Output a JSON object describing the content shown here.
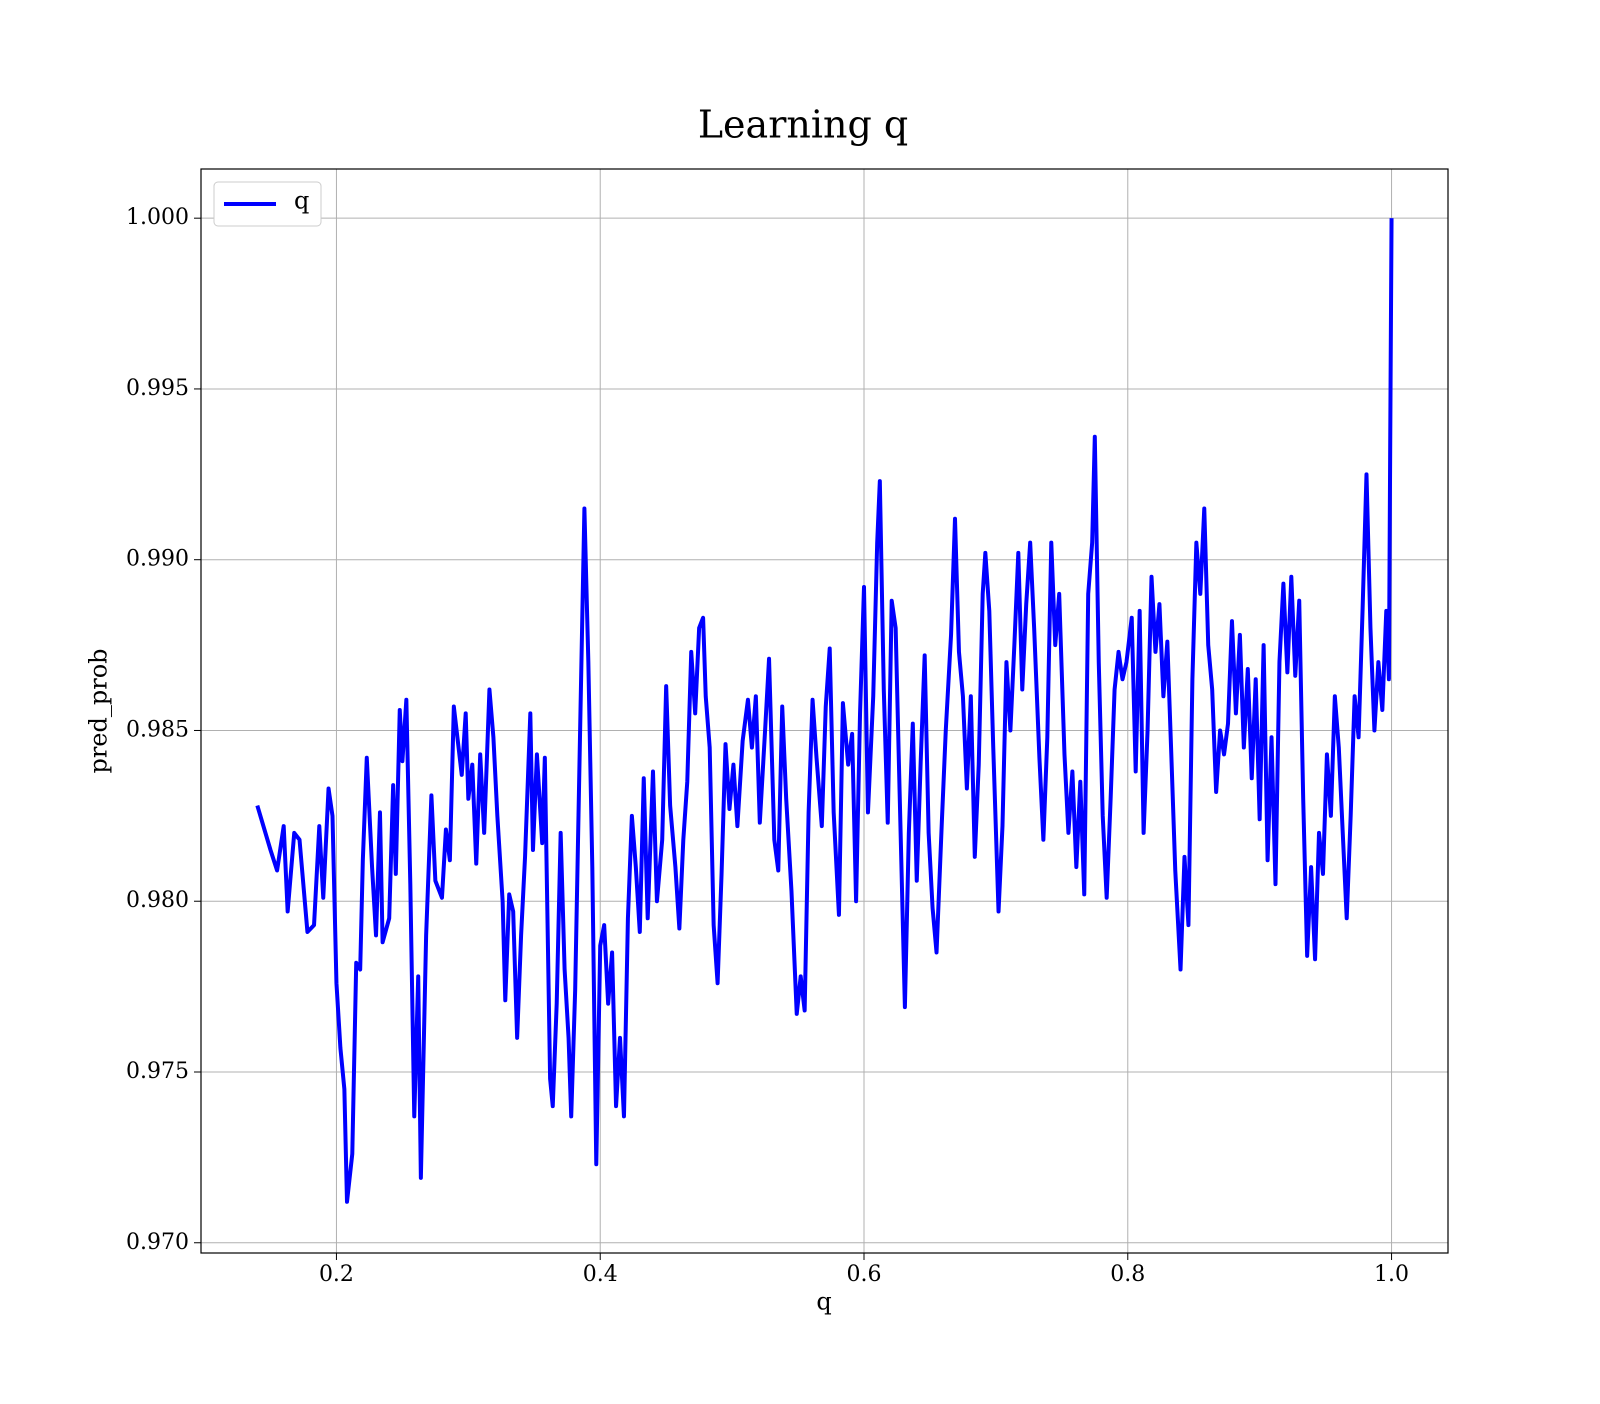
{
  "chart_data": {
    "type": "line",
    "title": "Learning q",
    "xlabel": "q",
    "ylabel": "pred_prob",
    "xlim": [
      0.0973,
      1.0428
    ],
    "ylim": [
      0.9697,
      1.00144
    ],
    "xticks": [
      0.2,
      0.4,
      0.6,
      0.8,
      {
        "value": 1,
        "label": "1.0"
      }
    ],
    "yticks": [
      {
        "value": 0.97,
        "label": "0.970"
      },
      0.975,
      {
        "value": 0.98,
        "label": "0.980"
      },
      0.985,
      {
        "value": 0.99,
        "label": "0.990"
      },
      0.995,
      {
        "value": 1,
        "label": "1.000"
      }
    ],
    "grid": true,
    "legend": "upper left",
    "x": [
      0.14,
      0.15,
      0.155,
      0.16,
      0.163,
      0.168,
      0.172,
      0.178,
      0.183,
      0.187,
      0.19,
      0.194,
      0.197,
      0.2,
      0.203,
      0.206,
      0.208,
      0.212,
      0.215,
      0.218,
      0.22,
      0.223,
      0.227,
      0.23,
      0.233,
      0.235,
      0.24,
      0.243,
      0.245,
      0.248,
      0.25,
      0.253,
      0.256,
      0.259,
      0.262,
      0.264,
      0.268,
      0.272,
      0.275,
      0.28,
      0.283,
      0.286,
      0.289,
      0.292,
      0.295,
      0.298,
      0.3,
      0.303,
      0.306,
      0.309,
      0.312,
      0.316,
      0.319,
      0.322,
      0.326,
      0.328,
      0.331,
      0.334,
      0.337,
      0.34,
      0.343,
      0.347,
      0.349,
      0.352,
      0.356,
      0.358,
      0.362,
      0.364,
      0.367,
      0.37,
      0.373,
      0.376,
      0.378,
      0.381,
      0.385,
      0.388,
      0.391,
      0.394,
      0.397,
      0.4,
      0.403,
      0.406,
      0.409,
      0.412,
      0.415,
      0.418,
      0.421,
      0.424,
      0.427,
      0.43,
      0.433,
      0.436,
      0.44,
      0.443,
      0.447,
      0.45,
      0.453,
      0.457,
      0.46,
      0.463,
      0.466,
      0.469,
      0.472,
      0.475,
      0.478,
      0.48,
      0.483,
      0.486,
      0.489,
      0.492,
      0.495,
      0.498,
      0.501,
      0.504,
      0.508,
      0.512,
      0.515,
      0.518,
      0.521,
      0.525,
      0.528,
      0.532,
      0.535,
      0.538,
      0.541,
      0.545,
      0.549,
      0.552,
      0.555,
      0.558,
      0.561,
      0.564,
      0.568,
      0.571,
      0.574,
      0.577,
      0.581,
      0.584,
      0.588,
      0.591,
      0.594,
      0.597,
      0.6,
      0.603,
      0.607,
      0.61,
      0.612,
      0.615,
      0.618,
      0.621,
      0.624,
      0.627,
      0.631,
      0.634,
      0.637,
      0.64,
      0.643,
      0.646,
      0.649,
      0.652,
      0.655,
      0.659,
      0.662,
      0.666,
      0.669,
      0.672,
      0.675,
      0.678,
      0.681,
      0.684,
      0.687,
      0.69,
      0.692,
      0.695,
      0.698,
      0.702,
      0.705,
      0.708,
      0.711,
      0.714,
      0.717,
      0.72,
      0.723,
      0.726,
      0.729,
      0.733,
      0.736,
      0.739,
      0.742,
      0.745,
      0.748,
      0.752,
      0.755,
      0.758,
      0.761,
      0.764,
      0.767,
      0.77,
      0.773,
      0.775,
      0.778,
      0.781,
      0.784,
      0.787,
      0.79,
      0.793,
      0.796,
      0.799,
      0.803,
      0.806,
      0.809,
      0.812,
      0.815,
      0.818,
      0.821,
      0.824,
      0.827,
      0.83,
      0.833,
      0.836,
      0.84,
      0.843,
      0.846,
      0.849,
      0.852,
      0.855,
      0.858,
      0.861,
      0.864,
      0.867,
      0.87,
      0.873,
      0.876,
      0.879,
      0.882,
      0.885,
      0.888,
      0.891,
      0.894,
      0.897,
      0.9,
      0.903,
      0.906,
      0.909,
      0.912,
      0.915,
      0.918,
      0.921,
      0.924,
      0.927,
      0.93,
      0.933,
      0.936,
      0.939,
      0.942,
      0.945,
      0.948,
      0.951,
      0.954,
      0.957,
      0.96,
      0.963,
      0.966,
      0.969,
      0.972,
      0.975,
      0.978,
      0.981,
      0.984,
      0.987,
      0.99,
      0.993,
      0.996,
      0.998,
      0.999,
      1.0
    ],
    "series": [
      {
        "name": "q",
        "color": "#0000ff",
        "values": [
          0.9828,
          0.9815,
          0.9809,
          0.9822,
          0.9797,
          0.982,
          0.9818,
          0.9791,
          0.9793,
          0.9822,
          0.9801,
          0.9833,
          0.9825,
          0.9776,
          0.9757,
          0.9745,
          0.9712,
          0.9726,
          0.9782,
          0.978,
          0.9812,
          0.9842,
          0.981,
          0.979,
          0.9826,
          0.9788,
          0.9795,
          0.9834,
          0.9808,
          0.9856,
          0.9841,
          0.9859,
          0.9805,
          0.9737,
          0.9778,
          0.9719,
          0.979,
          0.9831,
          0.9806,
          0.9801,
          0.9821,
          0.9812,
          0.9857,
          0.9847,
          0.9837,
          0.9855,
          0.983,
          0.984,
          0.9811,
          0.9843,
          0.982,
          0.9862,
          0.9848,
          0.9825,
          0.98,
          0.9771,
          0.9802,
          0.9797,
          0.976,
          0.979,
          0.9813,
          0.9855,
          0.9815,
          0.9843,
          0.9817,
          0.9842,
          0.9748,
          0.974,
          0.977,
          0.982,
          0.978,
          0.976,
          0.9737,
          0.9774,
          0.9855,
          0.9915,
          0.987,
          0.981,
          0.9723,
          0.9787,
          0.9793,
          0.977,
          0.9785,
          0.974,
          0.976,
          0.9737,
          0.9795,
          0.9825,
          0.981,
          0.9791,
          0.9836,
          0.9795,
          0.9838,
          0.98,
          0.9818,
          0.9863,
          0.9828,
          0.981,
          0.9792,
          0.9818,
          0.9835,
          0.9873,
          0.9855,
          0.988,
          0.9883,
          0.986,
          0.9845,
          0.9793,
          0.9776,
          0.9808,
          0.9846,
          0.9827,
          0.984,
          0.9822,
          0.9847,
          0.9859,
          0.9845,
          0.986,
          0.9823,
          0.985,
          0.9871,
          0.9818,
          0.9809,
          0.9857,
          0.983,
          0.9803,
          0.9767,
          0.9778,
          0.9768,
          0.9826,
          0.9859,
          0.9842,
          0.9822,
          0.9857,
          0.9874,
          0.9826,
          0.9796,
          0.9858,
          0.984,
          0.9849,
          0.98,
          0.9855,
          0.9892,
          0.9826,
          0.986,
          0.9905,
          0.9923,
          0.9862,
          0.9823,
          0.9888,
          0.988,
          0.9832,
          0.9769,
          0.982,
          0.9852,
          0.9806,
          0.9841,
          0.9872,
          0.982,
          0.9798,
          0.9785,
          0.9823,
          0.985,
          0.9878,
          0.9912,
          0.9873,
          0.986,
          0.9833,
          0.986,
          0.9813,
          0.984,
          0.989,
          0.9902,
          0.9885,
          0.9845,
          0.9797,
          0.9822,
          0.987,
          0.985,
          0.9875,
          0.9902,
          0.9862,
          0.9887,
          0.9905,
          0.988,
          0.9842,
          0.9818,
          0.9848,
          0.9905,
          0.9875,
          0.989,
          0.9843,
          0.982,
          0.9838,
          0.981,
          0.9835,
          0.9802,
          0.989,
          0.9905,
          0.9936,
          0.987,
          0.9825,
          0.9801,
          0.983,
          0.9862,
          0.9873,
          0.9865,
          0.987,
          0.9883,
          0.9838,
          0.9885,
          0.982,
          0.985,
          0.9895,
          0.9873,
          0.9887,
          0.986,
          0.9876,
          0.9843,
          0.9809,
          0.978,
          0.9813,
          0.9793,
          0.9865,
          0.9905,
          0.989,
          0.9915,
          0.9875,
          0.9862,
          0.9832,
          0.985,
          0.9843,
          0.9852,
          0.9882,
          0.9855,
          0.9878,
          0.9845,
          0.9868,
          0.9836,
          0.9865,
          0.9824,
          0.9875,
          0.9812,
          0.9848,
          0.9805,
          0.987,
          0.9893,
          0.9867,
          0.9895,
          0.9866,
          0.9888,
          0.983,
          0.9784,
          0.981,
          0.9783,
          0.982,
          0.9808,
          0.9843,
          0.9825,
          0.986,
          0.9845,
          0.982,
          0.9795,
          0.9825,
          0.986,
          0.9848,
          0.9885,
          0.9925,
          0.988,
          0.985,
          0.987,
          0.9856,
          0.9885,
          0.9865,
          0.9935,
          1.0
        ]
      }
    ]
  }
}
